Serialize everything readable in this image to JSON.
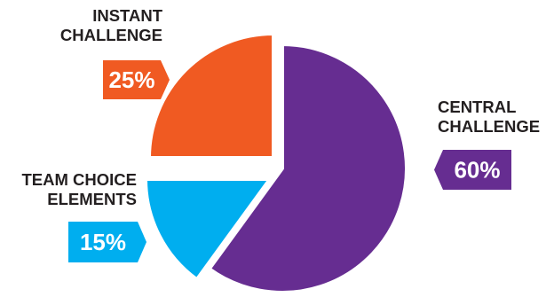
{
  "chart_data": {
    "type": "pie",
    "title": "",
    "slices": [
      {
        "name_lines": [
          "INSTANT",
          "CHALLENGE"
        ],
        "value": 25,
        "label": "25%",
        "color": "#f05a22"
      },
      {
        "name_lines": [
          "CENTRAL",
          "CHALLENGE"
        ],
        "value": 60,
        "label": "60%",
        "color": "#662d91"
      },
      {
        "name_lines": [
          "TEAM CHOICE",
          "ELEMENTS"
        ],
        "value": 15,
        "label": "15%",
        "color": "#00aeef"
      }
    ],
    "exploded": true,
    "background": "#ffffff"
  }
}
